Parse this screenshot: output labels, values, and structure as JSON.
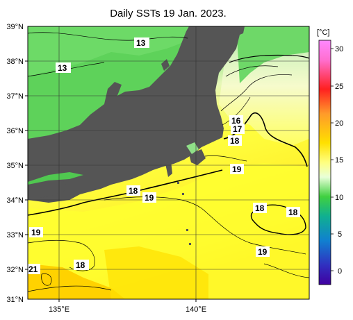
{
  "title": "Daily SSTs 19 Jan. 2023.",
  "lat_labels": [
    "39°N",
    "38°N",
    "37°N",
    "36°N",
    "35°N",
    "34°N",
    "33°N",
    "32°N",
    "31°N"
  ],
  "lon_labels": [
    "135°E",
    "140°E"
  ],
  "colorbar": {
    "unit": "[°C]",
    "ticks": [
      "30",
      "25",
      "20",
      "15",
      "10",
      "5",
      "0"
    ],
    "stops": [
      "#ff88ff",
      "#ff2020",
      "#ff9a2a",
      "#ffe000",
      "#ffff80",
      "#e8ffd8",
      "#40d040",
      "#10b090",
      "#1080d0",
      "#3030c0",
      "#4000a0"
    ]
  },
  "contour_labels": {
    "north_13a": "13",
    "north_13b": "13",
    "c16": "16",
    "c17": "17",
    "c18_east": "18",
    "c19_east": "19",
    "c18_center": "18",
    "c19_center": "19",
    "c18_eddy_left": "18",
    "c18_eddy_right": "18",
    "c19_southeast": "19",
    "c19_west": "19",
    "c18_southwest": "18",
    "c21_southwest": "21"
  },
  "colors": {
    "land": "#555555",
    "sea_cold": "#5ed25a",
    "sea_cool": "#7fe07a",
    "sea_mid": "#e6f7b8",
    "sea_warm": "#ffff3c",
    "sea_hot": "#ffd400"
  }
}
